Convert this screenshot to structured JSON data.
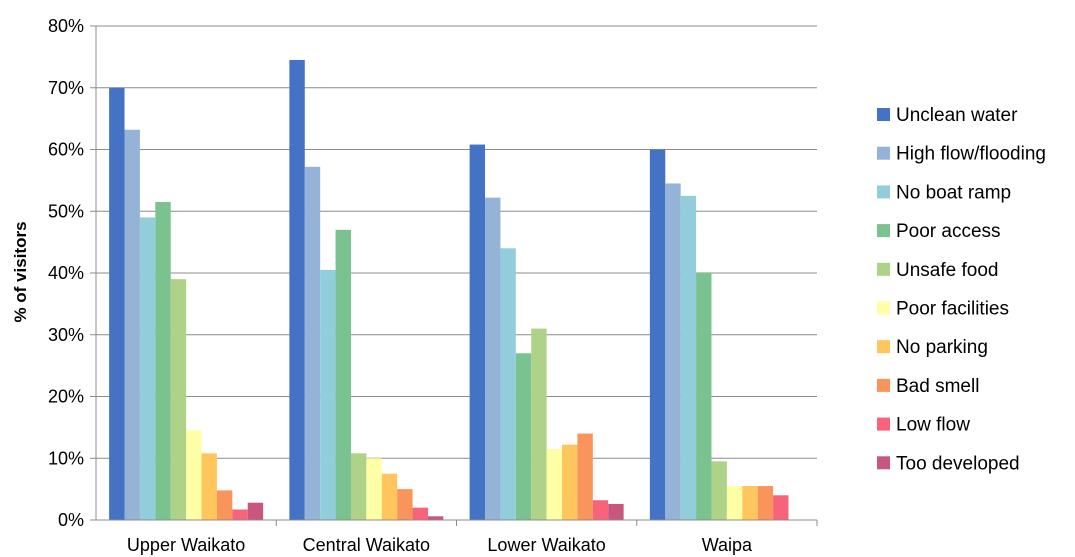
{
  "chart_data": {
    "type": "bar",
    "title": "",
    "xlabel": "",
    "ylabel": "% of visitors",
    "ylim": [
      0,
      80
    ],
    "yticks": [
      "0%",
      "10%",
      "20%",
      "30%",
      "40%",
      "50%",
      "60%",
      "70%",
      "80%"
    ],
    "grid": "horizontal",
    "legend_position": "right",
    "categories": [
      "Upper Waikato",
      "Central Waikato",
      "Lower Waikato",
      "Waipa"
    ],
    "series": [
      {
        "name": "Unclean water",
        "color": "#4472C4",
        "values": [
          70,
          74.5,
          60.8,
          60
        ]
      },
      {
        "name": "High flow/flooding",
        "color": "#95B3D7",
        "values": [
          63.2,
          57.2,
          52.2,
          54.5
        ]
      },
      {
        "name": "No boat ramp",
        "color": "#92CDDC",
        "values": [
          49,
          40.5,
          44,
          52.5
        ]
      },
      {
        "name": "Poor access",
        "color": "#7AC391",
        "values": [
          51.5,
          47,
          27,
          40
        ]
      },
      {
        "name": "Unsafe food",
        "color": "#ADD288",
        "values": [
          39,
          10.8,
          31,
          9.5
        ]
      },
      {
        "name": "Poor facilities",
        "color": "#FFFFA6",
        "values": [
          14.5,
          10,
          11.5,
          5.5
        ]
      },
      {
        "name": "No parking",
        "color": "#FFC65E",
        "values": [
          10.8,
          7.5,
          12.2,
          5.5
        ]
      },
      {
        "name": "Bad smell",
        "color": "#F9945B",
        "values": [
          4.8,
          5,
          14,
          5.5
        ]
      },
      {
        "name": "Low flow",
        "color": "#F7647A",
        "values": [
          1.7,
          2,
          3.2,
          4
        ]
      },
      {
        "name": "Too developed",
        "color": "#C8577D",
        "values": [
          2.8,
          0.6,
          2.6,
          0
        ]
      }
    ]
  }
}
